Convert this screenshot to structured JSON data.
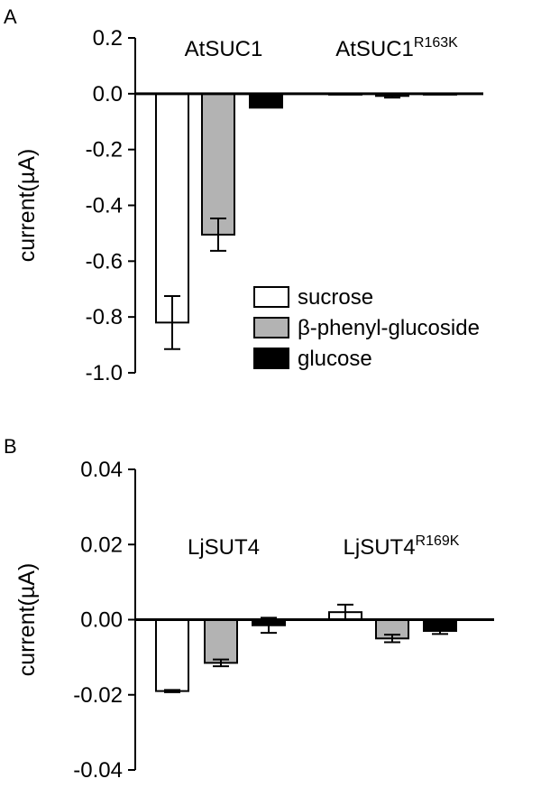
{
  "chart_data": [
    {
      "panel": "A",
      "type": "bar",
      "ylabel": "current(µA)",
      "ylim": [
        -1.0,
        0.2
      ],
      "yticks": [
        "0.2",
        "0.0",
        "-0.2",
        "-0.4",
        "-0.6",
        "-0.8",
        "-1.0"
      ],
      "ytick_values": [
        0.2,
        0.0,
        -0.2,
        -0.4,
        -0.6,
        -0.8,
        -1.0
      ],
      "groups": [
        {
          "label": "AtSUC1",
          "sup": ""
        },
        {
          "label": "AtSUC1",
          "sup": "R163K"
        }
      ],
      "series": [
        {
          "name": "sucrose",
          "color": "#ffffff",
          "values": [
            -0.82,
            0.0
          ],
          "errors": [
            0.095,
            0.0
          ]
        },
        {
          "name": "β-phenyl-glucoside",
          "color": "#b3b3b3",
          "values": [
            -0.505,
            -0.008
          ],
          "errors": [
            0.058,
            0.006
          ]
        },
        {
          "name": "glucose",
          "color": "#000000",
          "values": [
            -0.05,
            -0.002
          ],
          "errors": [
            0.0,
            0.0
          ]
        }
      ],
      "legend": {
        "placement": "bottom-right",
        "entries": [
          "sucrose",
          "β-phenyl-glucoside",
          "glucose"
        ]
      }
    },
    {
      "panel": "B",
      "type": "bar",
      "ylabel": "current(µA)",
      "ylim": [
        -0.04,
        0.04
      ],
      "yticks": [
        "0.04",
        "0.02",
        "0.00",
        "-0.02",
        "-0.04"
      ],
      "ytick_values": [
        0.04,
        0.02,
        0.0,
        -0.02,
        -0.04
      ],
      "groups": [
        {
          "label": "LjSUT4",
          "sup": ""
        },
        {
          "label": "LjSUT4",
          "sup": "R169K"
        }
      ],
      "series": [
        {
          "name": "sucrose",
          "color": "#ffffff",
          "values": [
            -0.019,
            0.002
          ],
          "errors": [
            0.0003,
            0.002
          ]
        },
        {
          "name": "β-phenyl-glucoside",
          "color": "#b3b3b3",
          "values": [
            -0.0115,
            -0.005
          ],
          "errors": [
            0.0009,
            0.001
          ]
        },
        {
          "name": "glucose",
          "color": "#000000",
          "values": [
            -0.0015,
            -0.003
          ],
          "errors": [
            0.002,
            0.0008
          ]
        }
      ]
    }
  ]
}
